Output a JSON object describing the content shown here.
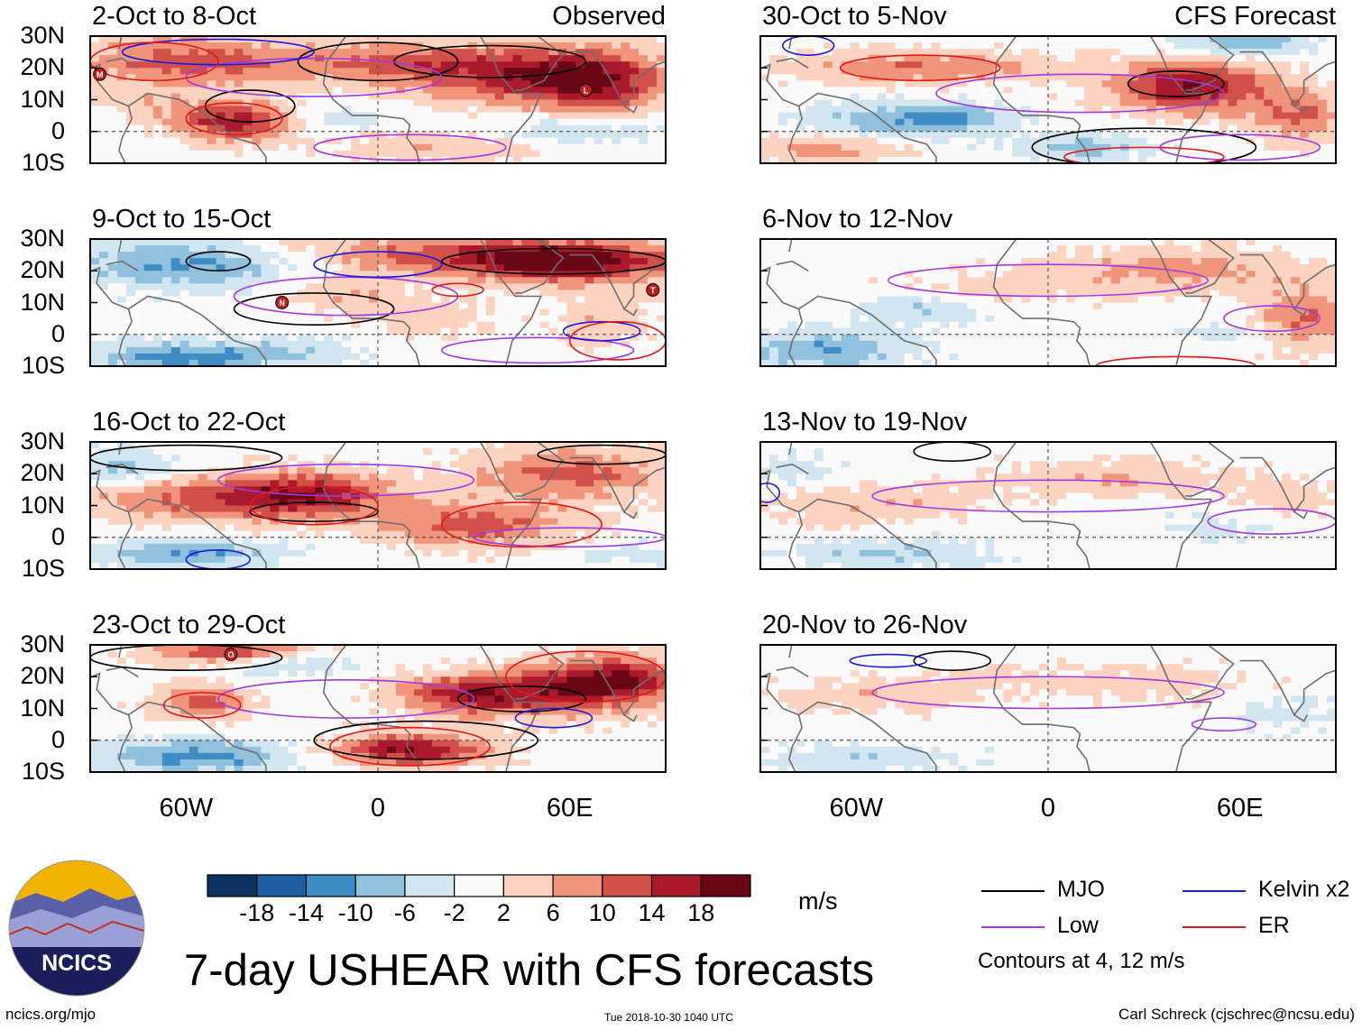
{
  "header": {
    "left_title": "Observed",
    "right_title": "CFS Forecast"
  },
  "chart_data": {
    "type": "heatmap",
    "title": "7-day USHEAR with CFS forecasts",
    "variable": "USHEAR",
    "units": "m/s",
    "latitude_ticks": [
      "30N",
      "20N",
      "10N",
      "0",
      "10S"
    ],
    "latitude_values": [
      30,
      20,
      10,
      0,
      -10
    ],
    "longitude_ticks": [
      "60W",
      "0",
      "60E"
    ],
    "longitude_values": [
      -60,
      0,
      60
    ],
    "lon_range": [
      -90,
      90
    ],
    "lat_range": [
      -10,
      30
    ],
    "colorbar": {
      "levels": [
        -18,
        -14,
        -10,
        -6,
        -2,
        2,
        6,
        10,
        14,
        18
      ],
      "labels": [
        "-18",
        "-14",
        "-10",
        "-6",
        "-2",
        "2",
        "6",
        "10",
        "14",
        "18"
      ],
      "colors": [
        "#0a3160",
        "#1d5fa4",
        "#3f8bc4",
        "#8fc1dd",
        "#d2e6f1",
        "#fafafa",
        "#fbd3c0",
        "#f0957b",
        "#d1514a",
        "#ab1a2c",
        "#6a0716"
      ]
    },
    "panels": {
      "observed": [
        {
          "period": "2-Oct to 8-Oct",
          "anomaly": "positive shear across 15-25N; easterly shear in central Atlantic near equator"
        },
        {
          "period": "9-Oct to 15-Oct",
          "anomaly": "negative shear western Atlantic; strong positive north of 20N over Africa/Asia"
        },
        {
          "period": "16-Oct to 22-Oct",
          "anomaly": "positive band 10-20N from Caribbean to Africa"
        },
        {
          "period": "23-Oct to 29-Oct",
          "anomaly": "strong positive over Africa and Arabian Sea; negative off South America"
        }
      ],
      "forecast": [
        {
          "period": "30-Oct to 5-Nov",
          "anomaly": "positive band 10-20N with maximum near 45E"
        },
        {
          "period": "6-Nov to 12-Nov",
          "anomaly": "weak positive north of 10N; negative near equator west"
        },
        {
          "period": "13-Nov to 19-Nov",
          "anomaly": "weak positive near 10N"
        },
        {
          "period": "20-Nov to 26-Nov",
          "anomaly": "weak anomalies"
        }
      ]
    },
    "tc_symbols": [
      {
        "panel": "2-Oct to 8-Oct",
        "letter": "M",
        "lon": -87,
        "lat": 18
      },
      {
        "panel": "2-Oct to 8-Oct",
        "letter": "L",
        "lon": 65,
        "lat": 13
      },
      {
        "panel": "9-Oct to 15-Oct",
        "letter": "N",
        "lon": -30,
        "lat": 10
      },
      {
        "panel": "9-Oct to 15-Oct",
        "letter": "T",
        "lon": 86,
        "lat": 14
      },
      {
        "panel": "23-Oct to 29-Oct",
        "letter": "O",
        "lon": -46,
        "lat": 27
      }
    ],
    "contour_note": "Contours at 4, 12 m/s",
    "legend": [
      {
        "name": "MJO",
        "color": "#000000"
      },
      {
        "name": "Kelvin x2",
        "color": "#1a1adc"
      },
      {
        "name": "Low",
        "color": "#a23ae0"
      },
      {
        "name": "ER",
        "color": "#e01818"
      }
    ]
  },
  "branding": {
    "logo_text": "NCICS",
    "website": "ncics.org/mjo",
    "timestamp": "Tue 2018-10-30 1040 UTC",
    "credit": "Carl Schreck (cjschrec@ncsu.edu)"
  }
}
